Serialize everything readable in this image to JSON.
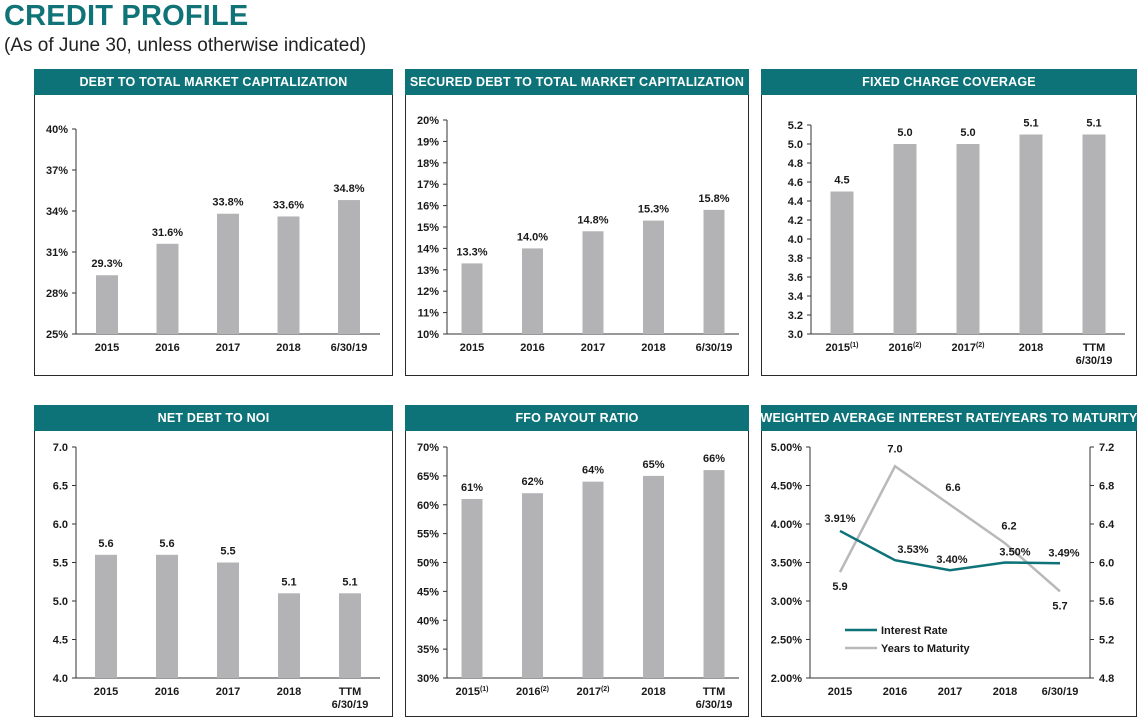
{
  "page": {
    "title": "CREDIT PROFILE",
    "subtitle": "(As of June 30, unless otherwise indicated)"
  },
  "colors": {
    "teal": "#0e7378",
    "bar": "#b3b3b5",
    "gray_line": "#b9b9bb",
    "axis": "#333333"
  },
  "chart_data": [
    {
      "id": "debt-to-total-market-cap",
      "type": "bar",
      "title": "DEBT TO TOTAL MARKET CAPITALIZATION",
      "categories": [
        "2015",
        "2016",
        "2017",
        "2018",
        "6/30/19"
      ],
      "values": [
        29.3,
        31.6,
        33.8,
        33.6,
        34.8
      ],
      "value_labels": [
        "29.3%",
        "31.6%",
        "33.8%",
        "33.6%",
        "34.8%"
      ],
      "ylim": [
        25,
        40
      ],
      "yticks": [
        25,
        28,
        31,
        34,
        37,
        40
      ],
      "ytick_labels": [
        "25%",
        "28%",
        "31%",
        "34%",
        "37%",
        "40%"
      ]
    },
    {
      "id": "secured-debt-to-total-market-cap",
      "type": "bar",
      "title": "SECURED DEBT TO TOTAL MARKET CAPITALIZATION",
      "categories": [
        "2015",
        "2016",
        "2017",
        "2018",
        "6/30/19"
      ],
      "values": [
        13.3,
        14.0,
        14.8,
        15.3,
        15.8
      ],
      "value_labels": [
        "13.3%",
        "14.0%",
        "14.8%",
        "15.3%",
        "15.8%"
      ],
      "ylim": [
        10,
        20
      ],
      "yticks": [
        10,
        11,
        12,
        13,
        14,
        15,
        16,
        17,
        18,
        19,
        20
      ],
      "ytick_labels": [
        "10%",
        "11%",
        "12%",
        "13%",
        "14%",
        "15%",
        "16%",
        "17%",
        "18%",
        "19%",
        "20%"
      ]
    },
    {
      "id": "fixed-charge-coverage",
      "type": "bar",
      "title": "FIXED CHARGE COVERAGE",
      "categories": [
        "2015(1)",
        "2016(2)",
        "2017(2)",
        "2018",
        "TTM 6/30/19"
      ],
      "category_labels": [
        {
          "main": "2015",
          "sup": "(1)"
        },
        {
          "main": "2016",
          "sup": "(2)"
        },
        {
          "main": "2017",
          "sup": "(2)"
        },
        {
          "main": "2018"
        },
        {
          "main": "TTM",
          "line2": "6/30/19"
        }
      ],
      "values": [
        4.5,
        5.0,
        5.0,
        5.1,
        5.1
      ],
      "value_labels": [
        "4.5",
        "5.0",
        "5.0",
        "5.1",
        "5.1"
      ],
      "ylim": [
        3.0,
        5.2
      ],
      "yticks": [
        3.0,
        3.2,
        3.4,
        3.6,
        3.8,
        4.0,
        4.2,
        4.4,
        4.6,
        4.8,
        5.0,
        5.2
      ],
      "ytick_labels": [
        "3.0",
        "3.2",
        "3.4",
        "3.6",
        "3.8",
        "4.0",
        "4.2",
        "4.4",
        "4.6",
        "4.8",
        "5.0",
        "5.2"
      ]
    },
    {
      "id": "net-debt-to-noi",
      "type": "bar",
      "title": "NET DEBT TO NOI",
      "categories": [
        "2015",
        "2016",
        "2017",
        "2018",
        "TTM 6/30/19"
      ],
      "category_labels": [
        {
          "main": "2015"
        },
        {
          "main": "2016"
        },
        {
          "main": "2017"
        },
        {
          "main": "2018"
        },
        {
          "main": "TTM",
          "line2": "6/30/19"
        }
      ],
      "values": [
        5.6,
        5.6,
        5.5,
        5.1,
        5.1
      ],
      "value_labels": [
        "5.6",
        "5.6",
        "5.5",
        "5.1",
        "5.1"
      ],
      "ylim": [
        4.0,
        7.0
      ],
      "yticks": [
        4.0,
        4.5,
        5.0,
        5.5,
        6.0,
        6.5,
        7.0
      ],
      "ytick_labels": [
        "4.0",
        "4.5",
        "5.0",
        "5.5",
        "6.0",
        "6.5",
        "7.0"
      ]
    },
    {
      "id": "ffo-payout-ratio",
      "type": "bar",
      "title": "FFO PAYOUT RATIO",
      "categories": [
        "2015(1)",
        "2016(2)",
        "2017(2)",
        "2018",
        "TTM 6/30/19"
      ],
      "category_labels": [
        {
          "main": "2015",
          "sup": "(1)"
        },
        {
          "main": "2016",
          "sup": "(2)"
        },
        {
          "main": "2017",
          "sup": "(2)"
        },
        {
          "main": "2018"
        },
        {
          "main": "TTM",
          "line2": "6/30/19"
        }
      ],
      "values": [
        61,
        62,
        64,
        65,
        66
      ],
      "value_labels": [
        "61%",
        "62%",
        "64%",
        "65%",
        "66%"
      ],
      "ylim": [
        30,
        70
      ],
      "yticks": [
        30,
        35,
        40,
        45,
        50,
        55,
        60,
        65,
        70
      ],
      "ytick_labels": [
        "30%",
        "35%",
        "40%",
        "45%",
        "50%",
        "55%",
        "60%",
        "65%",
        "70%"
      ]
    },
    {
      "id": "weighted-average-interest-rate",
      "type": "line",
      "title": "WEIGHTED AVERAGE INTEREST RATE/YEARS TO MATURITY",
      "categories": [
        "2015",
        "2016",
        "2017",
        "2018",
        "6/30/19"
      ],
      "series": [
        {
          "name": "Interest Rate",
          "axis": "left",
          "values": [
            3.91,
            3.53,
            3.4,
            3.5,
            3.49
          ],
          "value_labels": [
            "3.91%",
            "3.53%",
            "3.40%",
            "3.50%",
            "3.49%"
          ]
        },
        {
          "name": "Years to Maturity",
          "axis": "right",
          "values": [
            5.9,
            7.0,
            6.6,
            6.2,
            5.7
          ],
          "value_labels": [
            "5.9",
            "7.0",
            "6.6",
            "6.2",
            "5.7"
          ]
        }
      ],
      "ylim_left": [
        2.0,
        5.0
      ],
      "yticks_left": [
        2.0,
        2.5,
        3.0,
        3.5,
        4.0,
        4.5,
        5.0
      ],
      "ytick_labels_left": [
        "2.00%",
        "2.50%",
        "3.00%",
        "3.50%",
        "4.00%",
        "4.50%",
        "5.00%"
      ],
      "ylim_right": [
        4.8,
        7.2
      ],
      "yticks_right": [
        4.8,
        5.2,
        5.6,
        6.0,
        6.4,
        6.8,
        7.2
      ],
      "ytick_labels_right": [
        "4.8",
        "5.2",
        "5.6",
        "6.0",
        "6.4",
        "6.8",
        "7.2"
      ],
      "legend_position": "bottom-left"
    }
  ]
}
